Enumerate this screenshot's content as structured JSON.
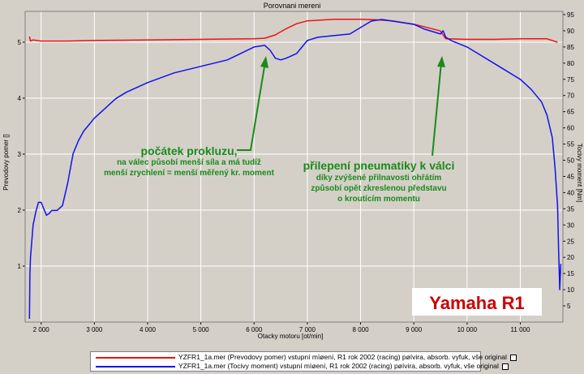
{
  "chart_data": {
    "type": "line",
    "title": "Porovnani mereni",
    "xlabel": "Otacky motoru [ot/min]",
    "ylabel_left": "Prevodovy pomer []",
    "ylabel_right": "Tocivy moment [Nm]",
    "xlim": [
      1700,
      11800
    ],
    "ylim_left": [
      0,
      5.55
    ],
    "ylim_right": [
      0,
      96
    ],
    "x_ticks": [
      2000,
      3000,
      4000,
      5000,
      6000,
      7000,
      8000,
      9000,
      10000,
      11000
    ],
    "x_tick_labels": [
      "2 000",
      "3 000",
      "4 000",
      "5 000",
      "6 000",
      "7 000",
      "8 000",
      "9 000",
      "10 000",
      "11 000"
    ],
    "y_left_ticks": [
      1,
      2,
      3,
      4,
      5
    ],
    "y_right_ticks": [
      5,
      10,
      15,
      20,
      25,
      30,
      35,
      40,
      45,
      50,
      55,
      60,
      65,
      70,
      75,
      80,
      85,
      90,
      95
    ],
    "grid": true,
    "series": [
      {
        "name": "Prevodovy pomer",
        "axis": "left",
        "color": "#ee1111",
        "x": [
          1780,
          1800,
          1850,
          2000,
          2500,
          3000,
          4000,
          5000,
          6000,
          6200,
          6400,
          6600,
          6800,
          7000,
          7500,
          8000,
          8300,
          8600,
          9000,
          9300,
          9500,
          9600,
          10000,
          10500,
          11000,
          11500,
          11700
        ],
        "y": [
          5.1,
          5.02,
          5.04,
          5.02,
          5.02,
          5.03,
          5.04,
          5.05,
          5.06,
          5.07,
          5.13,
          5.24,
          5.33,
          5.38,
          5.41,
          5.41,
          5.4,
          5.38,
          5.32,
          5.25,
          5.2,
          5.06,
          5.05,
          5.05,
          5.06,
          5.06,
          5.0
        ]
      },
      {
        "name": "Tocivy moment",
        "axis": "right",
        "color": "#1111ee",
        "x": [
          1780,
          1790,
          1800,
          1850,
          1900,
          1950,
          2000,
          2050,
          2100,
          2150,
          2200,
          2300,
          2400,
          2500,
          2600,
          2700,
          2800,
          2900,
          3000,
          3200,
          3400,
          3600,
          4000,
          4500,
          5000,
          5500,
          6000,
          6200,
          6300,
          6400,
          6500,
          6600,
          6800,
          7000,
          7200,
          7500,
          7800,
          8000,
          8200,
          8400,
          8600,
          8800,
          9000,
          9200,
          9400,
          9500,
          9550,
          9600,
          9700,
          10000,
          10200,
          10500,
          10700,
          11000,
          11200,
          11400,
          11500,
          11600,
          11650,
          11700,
          11720,
          11740,
          11760
        ],
        "y": [
          1,
          15,
          20,
          30,
          34,
          37,
          37,
          35,
          33,
          33.5,
          34.5,
          34.5,
          36,
          43,
          52,
          56,
          59,
          61,
          63,
          66,
          69,
          71,
          74,
          77,
          79,
          81,
          85,
          85.5,
          84,
          81.5,
          81,
          81.5,
          83,
          87,
          88,
          88.5,
          89,
          91,
          93,
          93.5,
          93,
          92.5,
          92,
          90.5,
          89.5,
          89,
          90,
          88,
          87,
          85,
          83,
          80,
          78,
          75,
          72,
          68,
          64,
          57,
          48,
          36,
          22,
          10,
          18
        ]
      }
    ],
    "annotations": {
      "left_title": "počátek prokluzu,",
      "left_line1": "na válec působí menší síla a má tudíž",
      "left_line2": "menší zrychlení = menší měřený kr. moment",
      "right_title": "přilepení pneumatiky k válci",
      "right_line1": "díky zvýšené přilnavosti ohřátím",
      "right_line2": "způsobí opět zkreslenou představu",
      "right_line3": "o kroutícím momentu",
      "brand": "Yamaha R1"
    },
    "legend": {
      "placement": "bottom",
      "entries": [
        "YZFR1_1a.mer  (Prevodovy pomer)  vstupní mìøení,  R1 rok 2002 (racing)  pøívira, absorb. vyfuk, vše original",
        "YZFR1_1a.mer  (Tocivy moment)  vstupní mìøení,  R1 rok 2002 (racing)  pøívira, absorb. vyfuk, vše original"
      ]
    },
    "colors": {
      "background": "#d4d0c8",
      "plot_area": "#d4d0c8",
      "grid": "#ffffff",
      "annotation_text": "#1a8a1a",
      "brand_text": "#cc0000",
      "brand_box": "#ffffff"
    }
  }
}
